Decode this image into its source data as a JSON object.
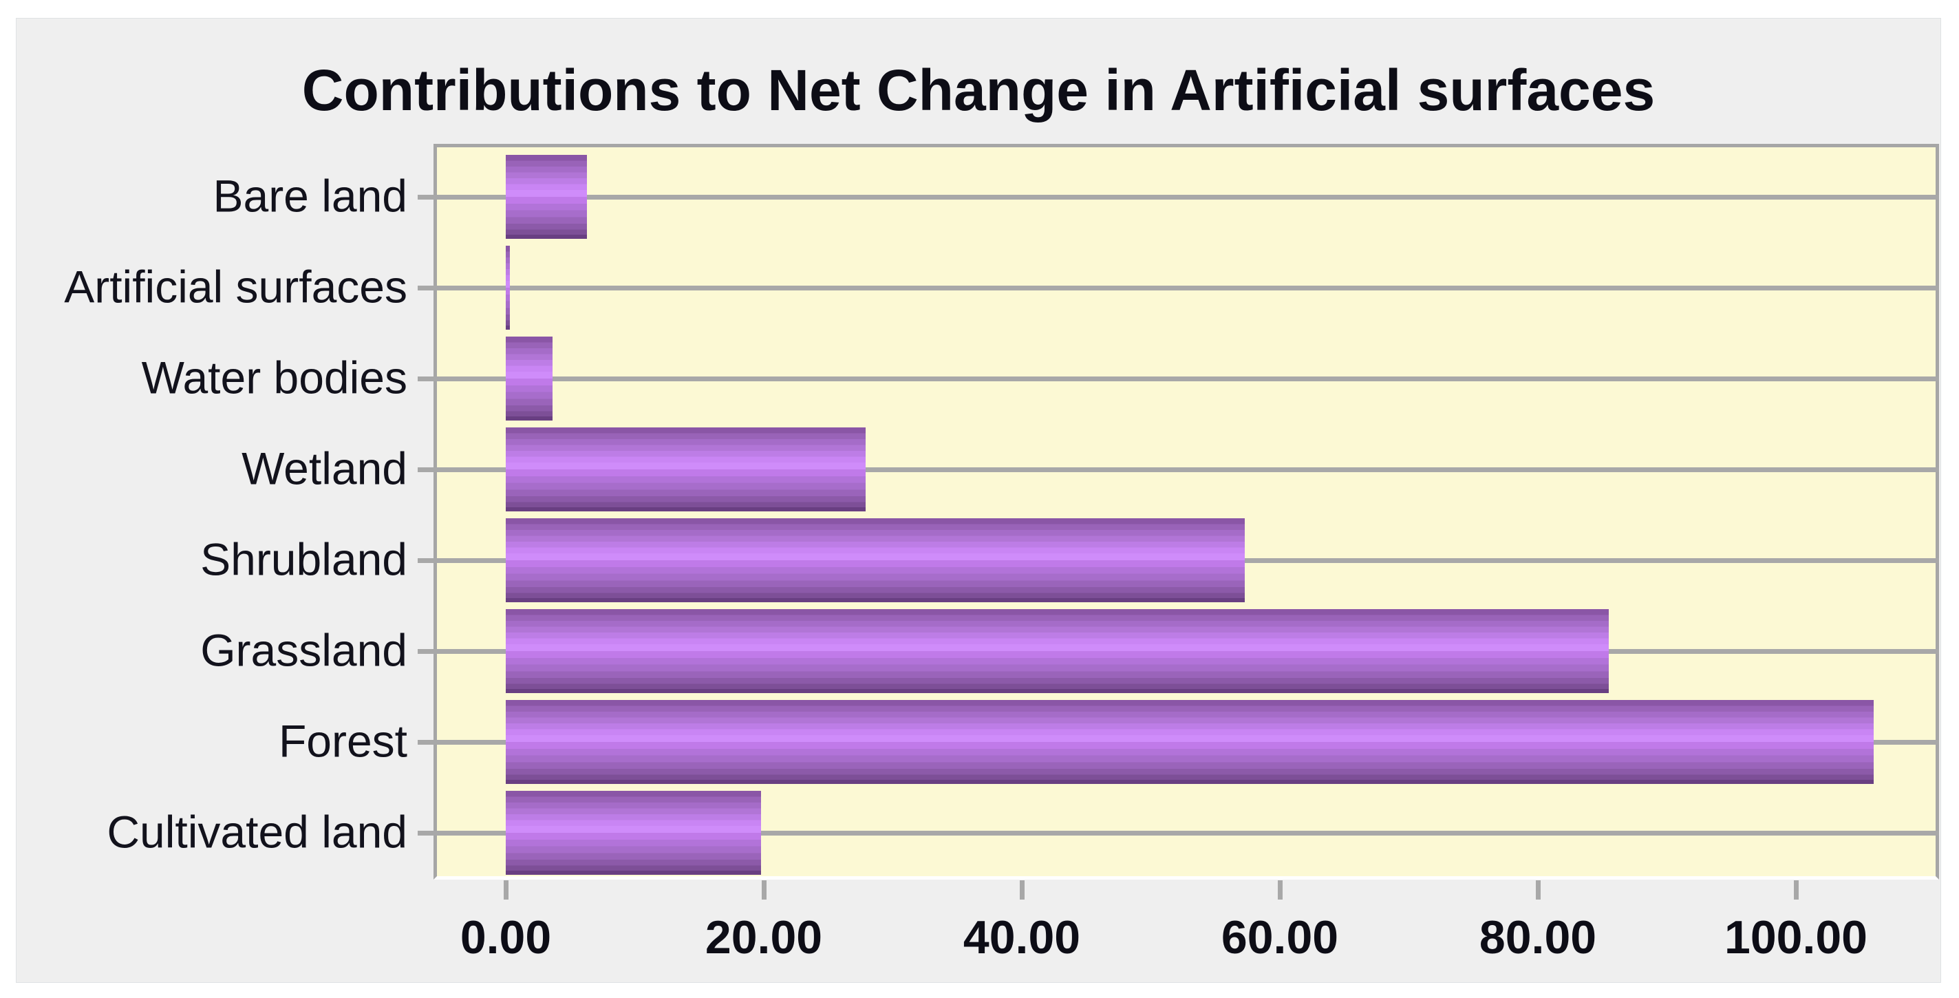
{
  "widget": {
    "background": "#efefef",
    "page_background": "#ffffff"
  },
  "chart_data": {
    "type": "bar",
    "orientation": "horizontal",
    "title": "Contributions to Net Change in Artificial surfaces",
    "categories": [
      "Bare land",
      "Artificial surfaces",
      "Water bodies",
      "Wetland",
      "Shrubland",
      "Grassland",
      "Forest",
      "Cultivated land"
    ],
    "values": [
      6.3,
      0.3,
      3.6,
      27.9,
      57.3,
      85.5,
      106.0,
      19.8
    ],
    "x_ticks": [
      0,
      20,
      40,
      60,
      80,
      100
    ],
    "x_tick_labels": [
      "0.00",
      "20.00",
      "40.00",
      "60.00",
      "80.00",
      "100.00"
    ],
    "xlim": [
      0,
      110.8
    ],
    "xlabel": "",
    "ylabel": "",
    "legend": "none",
    "grid": "category-gridlines-horizontal",
    "colors": {
      "bar_highlight": "#cf8cfa",
      "bar_shadow": "#693f82",
      "plot_background": "#fcf9d4",
      "gridline": "#a8a8a8",
      "text": "#0d0d16"
    }
  }
}
